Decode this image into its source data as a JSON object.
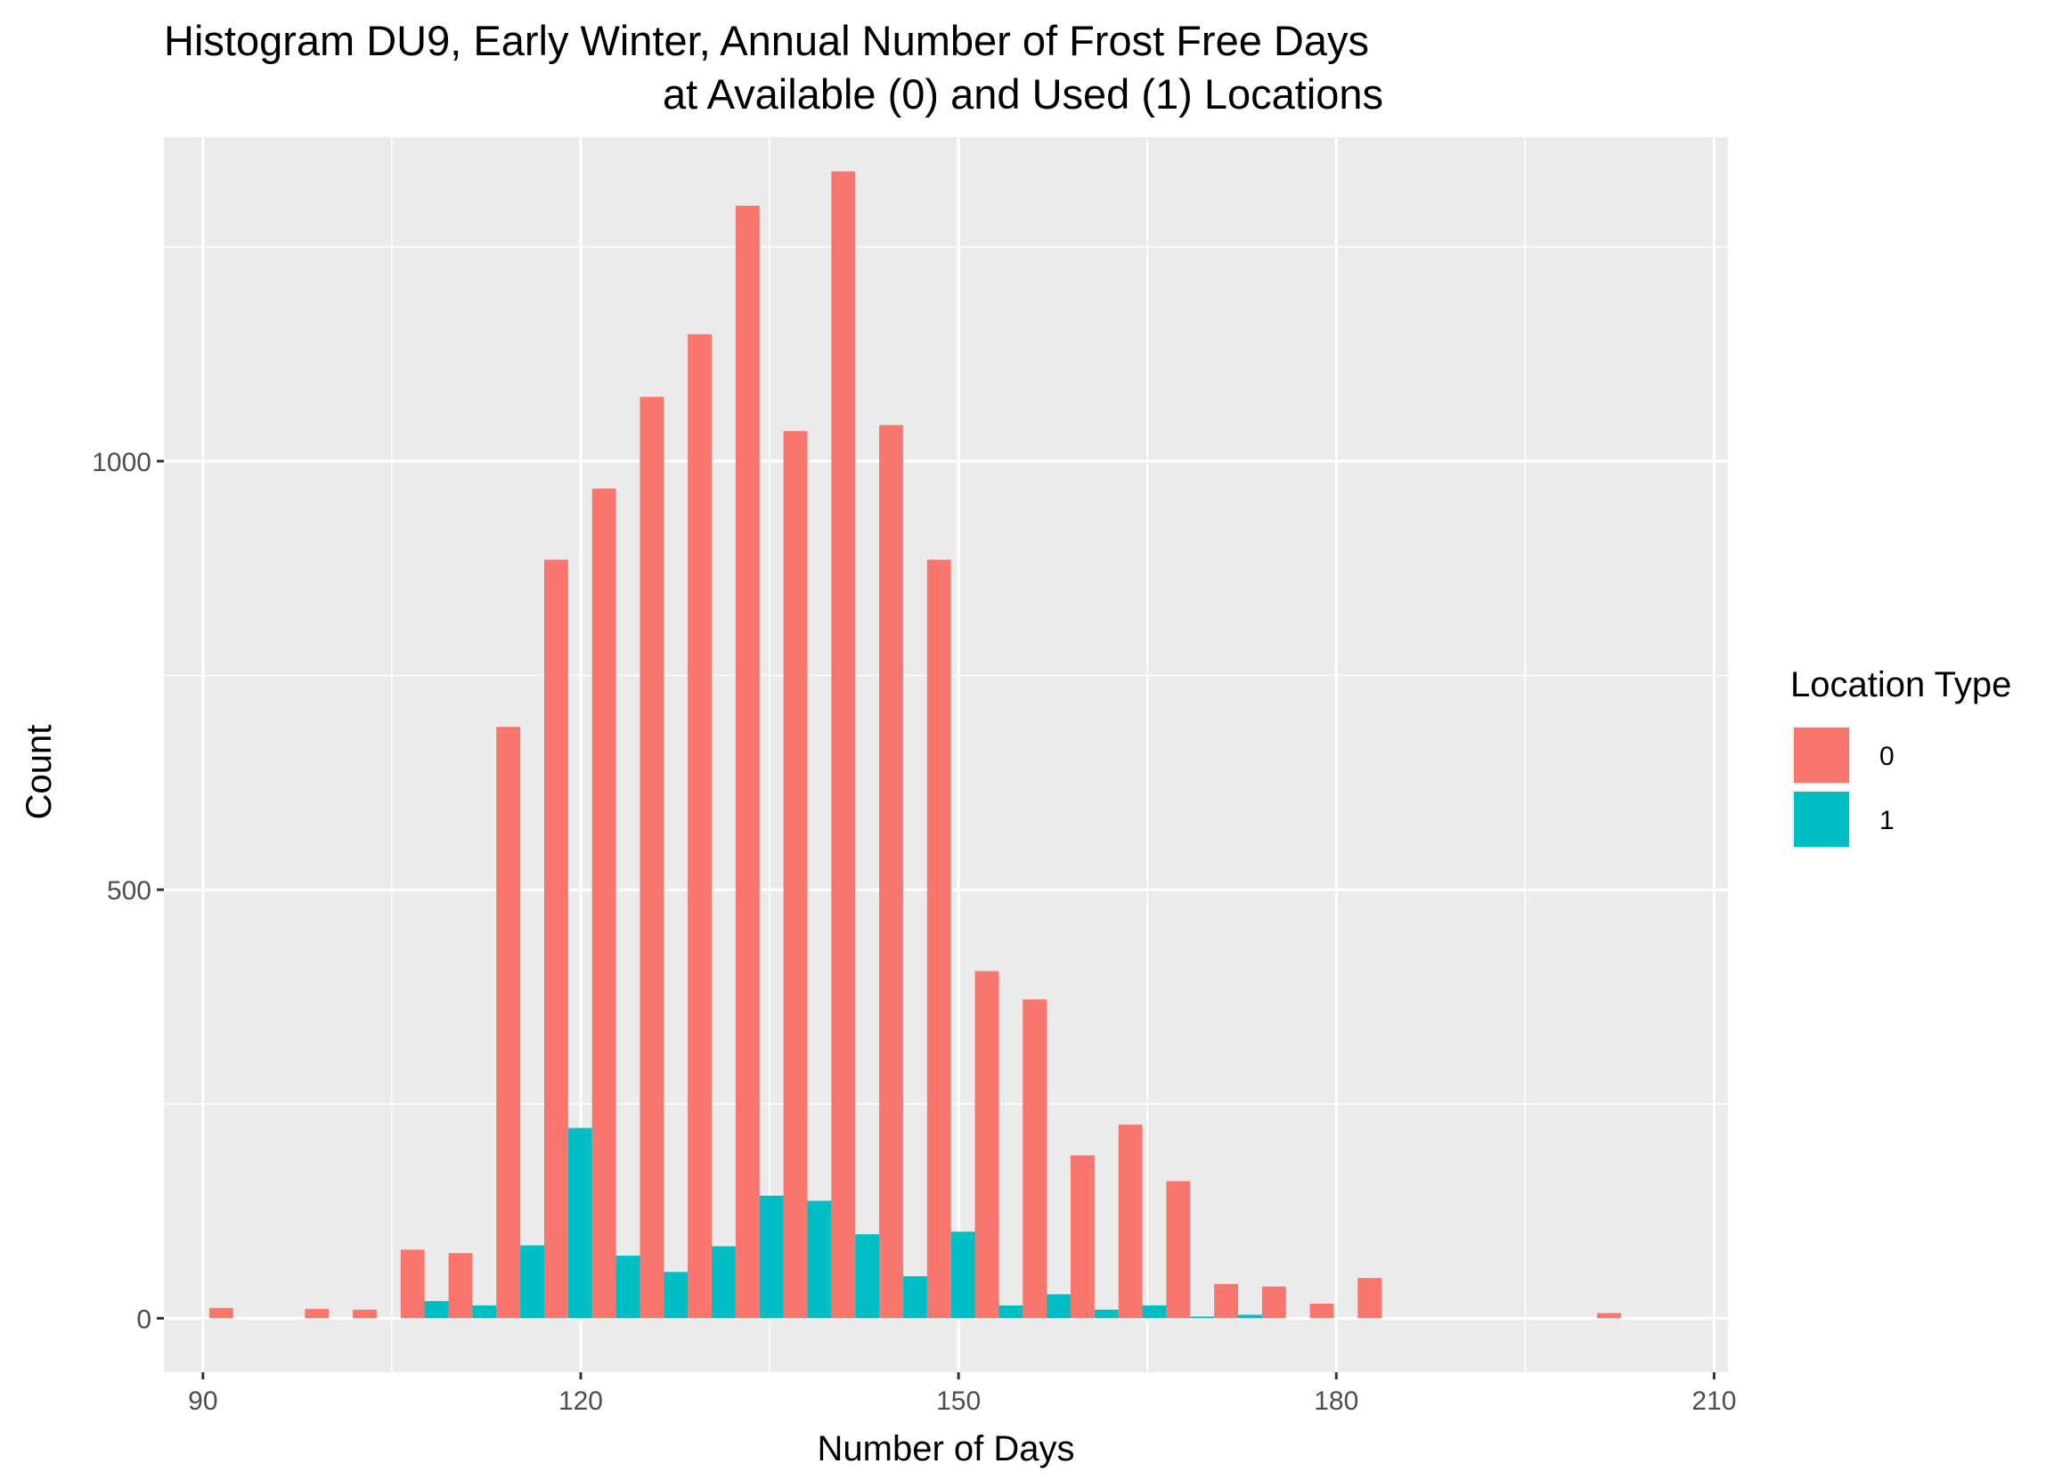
{
  "chart_data": {
    "type": "bar",
    "title_line1": "Histogram DU9, Early Winter, Annual Number of Frost Free Days",
    "title_line2": "at Available (0) and Used (1) Locations",
    "xlabel": "Number of Days",
    "ylabel": "Count",
    "xlim": [
      86.9,
      211.1
    ],
    "ylim": [
      -63,
      1378
    ],
    "x_ticks": [
      90,
      120,
      150,
      180,
      210
    ],
    "y_ticks": [
      0,
      500,
      1000
    ],
    "x_tick_labels": [
      "90",
      "120",
      "150",
      "180",
      "210"
    ],
    "y_tick_labels": [
      "0",
      "500",
      "1000"
    ],
    "bin_width": 3.8,
    "grid": true,
    "legend": {
      "title": "Location Type",
      "position": "right",
      "entries": [
        "0",
        "1"
      ]
    },
    "series": [
      {
        "name": "0",
        "color": "#F8766D",
        "x": [
          92.4,
          96.2,
          100.0,
          103.8,
          107.6,
          111.4,
          115.2,
          119.0,
          122.8,
          126.6,
          130.4,
          134.2,
          138.0,
          141.8,
          145.6,
          149.4,
          153.2,
          157.0,
          160.8,
          164.6,
          168.4,
          172.2,
          176.0,
          179.8,
          183.6,
          187.4,
          191.2,
          195.0,
          198.8,
          202.6
        ],
        "values": [
          12,
          0,
          11,
          10,
          80,
          76,
          690,
          885,
          968,
          1075,
          1148,
          1298,
          1035,
          1338,
          1042,
          885,
          405,
          372,
          190,
          226,
          160,
          40,
          37,
          17,
          47,
          0,
          0,
          0,
          0,
          6
        ]
      },
      {
        "name": "1",
        "color": "#00BFC4",
        "x": [
          92.4,
          96.2,
          100.0,
          103.8,
          107.6,
          111.4,
          115.2,
          119.0,
          122.8,
          126.6,
          130.4,
          134.2,
          138.0,
          141.8,
          145.6,
          149.4,
          153.2,
          157.0,
          160.8,
          164.6,
          168.4,
          172.2,
          176.0,
          179.8,
          183.6,
          187.4,
          191.2,
          195.0,
          198.8,
          202.6
        ],
        "values": [
          0,
          0,
          0,
          0,
          20,
          15,
          85,
          222,
          73,
          54,
          84,
          143,
          137,
          98,
          49,
          101,
          15,
          28,
          10,
          15,
          2,
          4,
          0,
          0,
          0,
          0,
          0,
          0,
          0,
          0
        ]
      }
    ]
  }
}
